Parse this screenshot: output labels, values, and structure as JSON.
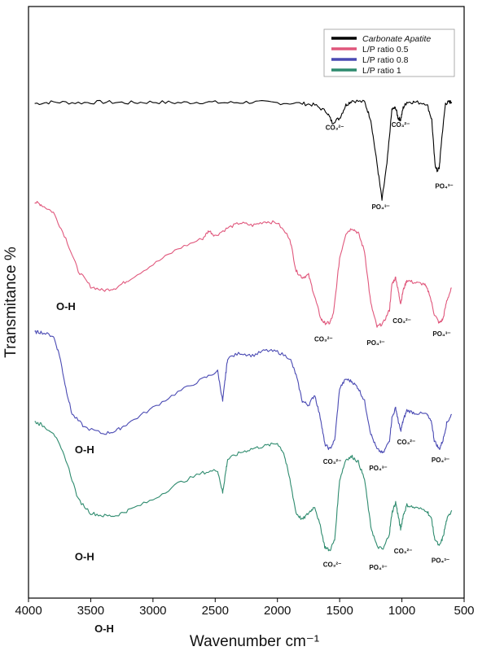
{
  "chart_data": {
    "type": "line",
    "xlabel": "Wavenumber cm⁻¹",
    "ylabel": "Transmitance %",
    "x_axis_extra_label": "O-H",
    "xlim": [
      4000,
      500
    ],
    "xticks": [
      "4000",
      "3500",
      "3000",
      "2500",
      "2000",
      "1500",
      "1000",
      "500"
    ],
    "legend_position": "top-right",
    "series": [
      {
        "name": "Carbonate Apatite",
        "color": "#000000",
        "italic": true,
        "points": [
          [
            3950,
            0.96
          ],
          [
            3800,
            0.97
          ],
          [
            3600,
            0.965
          ],
          [
            3400,
            0.97
          ],
          [
            3200,
            0.965
          ],
          [
            3000,
            0.97
          ],
          [
            2800,
            0.965
          ],
          [
            2600,
            0.97
          ],
          [
            2400,
            0.965
          ],
          [
            2200,
            0.97
          ],
          [
            2000,
            0.965
          ],
          [
            1800,
            0.96
          ],
          [
            1700,
            0.95
          ],
          [
            1600,
            0.9
          ],
          [
            1560,
            0.83
          ],
          [
            1500,
            0.86
          ],
          [
            1450,
            0.95
          ],
          [
            1400,
            0.98
          ],
          [
            1300,
            0.97
          ],
          [
            1250,
            0.85
          ],
          [
            1200,
            0.55
          ],
          [
            1160,
            0.3
          ],
          [
            1120,
            0.55
          ],
          [
            1080,
            0.92
          ],
          [
            1050,
            0.93
          ],
          [
            1030,
            0.86
          ],
          [
            1010,
            0.85
          ],
          [
            990,
            0.93
          ],
          [
            960,
            0.97
          ],
          [
            900,
            0.97
          ],
          [
            800,
            0.96
          ],
          [
            760,
            0.85
          ],
          [
            735,
            0.55
          ],
          [
            718,
            0.5
          ],
          [
            700,
            0.52
          ],
          [
            680,
            0.72
          ],
          [
            650,
            0.96
          ],
          [
            620,
            0.97
          ],
          [
            600,
            0.97
          ]
        ],
        "annotations": [
          {
            "text": "CO₃²⁻",
            "x": 1540,
            "y": 0.78
          },
          {
            "text": "CO₃²⁻",
            "x": 1010,
            "y": 0.8
          },
          {
            "text": "PO₄³⁻",
            "x": 1170,
            "y": 0.24
          },
          {
            "text": "PO₄³⁻",
            "x": 660,
            "y": 0.38
          }
        ]
      },
      {
        "name": "L/P ratio 0.5",
        "color": "#e0577c",
        "points": [
          [
            3950,
            0.98
          ],
          [
            3900,
            0.96
          ],
          [
            3800,
            0.9
          ],
          [
            3700,
            0.7
          ],
          [
            3600,
            0.45
          ],
          [
            3500,
            0.33
          ],
          [
            3400,
            0.3
          ],
          [
            3300,
            0.32
          ],
          [
            3200,
            0.38
          ],
          [
            3000,
            0.5
          ],
          [
            2800,
            0.62
          ],
          [
            2600,
            0.7
          ],
          [
            2550,
            0.76
          ],
          [
            2500,
            0.72
          ],
          [
            2400,
            0.78
          ],
          [
            2300,
            0.82
          ],
          [
            2200,
            0.8
          ],
          [
            2100,
            0.83
          ],
          [
            2000,
            0.82
          ],
          [
            1900,
            0.7
          ],
          [
            1850,
            0.45
          ],
          [
            1800,
            0.4
          ],
          [
            1750,
            0.42
          ],
          [
            1700,
            0.25
          ],
          [
            1650,
            0.08
          ],
          [
            1620,
            0.05
          ],
          [
            1580,
            0.05
          ],
          [
            1550,
            0.12
          ],
          [
            1500,
            0.55
          ],
          [
            1450,
            0.74
          ],
          [
            1400,
            0.78
          ],
          [
            1350,
            0.74
          ],
          [
            1300,
            0.6
          ],
          [
            1250,
            0.2
          ],
          [
            1200,
            0.02
          ],
          [
            1150,
            0.05
          ],
          [
            1100,
            0.15
          ],
          [
            1080,
            0.35
          ],
          [
            1050,
            0.4
          ],
          [
            1030,
            0.3
          ],
          [
            1010,
            0.2
          ],
          [
            990,
            0.3
          ],
          [
            960,
            0.38
          ],
          [
            900,
            0.36
          ],
          [
            820,
            0.35
          ],
          [
            780,
            0.28
          ],
          [
            740,
            0.12
          ],
          [
            700,
            0.05
          ],
          [
            670,
            0.08
          ],
          [
            640,
            0.22
          ],
          [
            600,
            0.32
          ]
        ],
        "annotations": [
          {
            "text": "O-H",
            "x": 3700,
            "y": 0.15,
            "big": true
          },
          {
            "text": "CO₃²⁻",
            "x": 1630,
            "y": -0.09
          },
          {
            "text": "PO₄³⁻",
            "x": 1210,
            "y": -0.12
          },
          {
            "text": "CO₃²⁻",
            "x": 1000,
            "y": 0.05
          },
          {
            "text": "PO₄³⁻",
            "x": 680,
            "y": -0.05
          }
        ]
      },
      {
        "name": "L/P ratio 0.8",
        "color": "#4a4ab3",
        "points": [
          [
            3950,
            0.98
          ],
          [
            3900,
            0.98
          ],
          [
            3800,
            0.95
          ],
          [
            3750,
            0.8
          ],
          [
            3700,
            0.55
          ],
          [
            3650,
            0.35
          ],
          [
            3550,
            0.25
          ],
          [
            3400,
            0.2
          ],
          [
            3300,
            0.22
          ],
          [
            3200,
            0.28
          ],
          [
            3000,
            0.4
          ],
          [
            2800,
            0.52
          ],
          [
            2600,
            0.62
          ],
          [
            2480,
            0.68
          ],
          [
            2440,
            0.45
          ],
          [
            2420,
            0.62
          ],
          [
            2400,
            0.78
          ],
          [
            2300,
            0.82
          ],
          [
            2200,
            0.8
          ],
          [
            2100,
            0.84
          ],
          [
            2000,
            0.83
          ],
          [
            1900,
            0.78
          ],
          [
            1850,
            0.65
          ],
          [
            1800,
            0.45
          ],
          [
            1750,
            0.42
          ],
          [
            1700,
            0.5
          ],
          [
            1650,
            0.3
          ],
          [
            1620,
            0.12
          ],
          [
            1580,
            0.08
          ],
          [
            1540,
            0.15
          ],
          [
            1500,
            0.55
          ],
          [
            1450,
            0.62
          ],
          [
            1400,
            0.6
          ],
          [
            1350,
            0.55
          ],
          [
            1300,
            0.45
          ],
          [
            1250,
            0.2
          ],
          [
            1200,
            0.08
          ],
          [
            1150,
            0.05
          ],
          [
            1100,
            0.15
          ],
          [
            1080,
            0.32
          ],
          [
            1050,
            0.4
          ],
          [
            1030,
            0.3
          ],
          [
            1010,
            0.22
          ],
          [
            990,
            0.3
          ],
          [
            960,
            0.38
          ],
          [
            900,
            0.36
          ],
          [
            800,
            0.35
          ],
          [
            760,
            0.28
          ],
          [
            740,
            0.15
          ],
          [
            700,
            0.08
          ],
          [
            670,
            0.15
          ],
          [
            640,
            0.28
          ],
          [
            600,
            0.35
          ]
        ],
        "annotations": [
          {
            "text": "O-H",
            "x": 3550,
            "y": 0.05,
            "big": true
          },
          {
            "text": "CO₃²⁻",
            "x": 1560,
            "y": -0.03
          },
          {
            "text": "PO₄³⁻",
            "x": 1190,
            "y": -0.08
          },
          {
            "text": "CO₃²⁻",
            "x": 965,
            "y": 0.12
          },
          {
            "text": "PO₄³⁻",
            "x": 690,
            "y": -0.02
          }
        ]
      },
      {
        "name": "L/P ratio 1",
        "color": "#2e8b6e",
        "points": [
          [
            3950,
            0.98
          ],
          [
            3900,
            0.96
          ],
          [
            3800,
            0.9
          ],
          [
            3700,
            0.7
          ],
          [
            3600,
            0.4
          ],
          [
            3500,
            0.3
          ],
          [
            3400,
            0.28
          ],
          [
            3300,
            0.28
          ],
          [
            3200,
            0.32
          ],
          [
            3000,
            0.4
          ],
          [
            2800,
            0.52
          ],
          [
            2600,
            0.6
          ],
          [
            2480,
            0.62
          ],
          [
            2440,
            0.45
          ],
          [
            2420,
            0.58
          ],
          [
            2400,
            0.7
          ],
          [
            2300,
            0.75
          ],
          [
            2200,
            0.78
          ],
          [
            2100,
            0.8
          ],
          [
            2000,
            0.82
          ],
          [
            1950,
            0.75
          ],
          [
            1900,
            0.55
          ],
          [
            1850,
            0.3
          ],
          [
            1800,
            0.25
          ],
          [
            1750,
            0.3
          ],
          [
            1700,
            0.35
          ],
          [
            1650,
            0.18
          ],
          [
            1620,
            0.05
          ],
          [
            1580,
            0.02
          ],
          [
            1540,
            0.1
          ],
          [
            1500,
            0.55
          ],
          [
            1450,
            0.7
          ],
          [
            1400,
            0.72
          ],
          [
            1350,
            0.68
          ],
          [
            1300,
            0.55
          ],
          [
            1250,
            0.2
          ],
          [
            1200,
            0.05
          ],
          [
            1150,
            0.03
          ],
          [
            1100,
            0.15
          ],
          [
            1080,
            0.3
          ],
          [
            1050,
            0.38
          ],
          [
            1030,
            0.28
          ],
          [
            1010,
            0.18
          ],
          [
            990,
            0.28
          ],
          [
            960,
            0.36
          ],
          [
            900,
            0.34
          ],
          [
            800,
            0.32
          ],
          [
            760,
            0.25
          ],
          [
            740,
            0.12
          ],
          [
            700,
            0.05
          ],
          [
            670,
            0.12
          ],
          [
            640,
            0.25
          ],
          [
            600,
            0.32
          ]
        ],
        "annotations": [
          {
            "text": "O-H",
            "x": 3550,
            "y": -0.05,
            "big": true
          },
          {
            "text": "CO₃²⁻",
            "x": 1560,
            "y": -0.1
          },
          {
            "text": "PO₄³⁻",
            "x": 1190,
            "y": -0.12
          },
          {
            "text": "CO₃²⁻",
            "x": 990,
            "y": 0.0
          },
          {
            "text": "PO₄³⁻",
            "x": 690,
            "y": -0.07
          }
        ]
      }
    ]
  }
}
